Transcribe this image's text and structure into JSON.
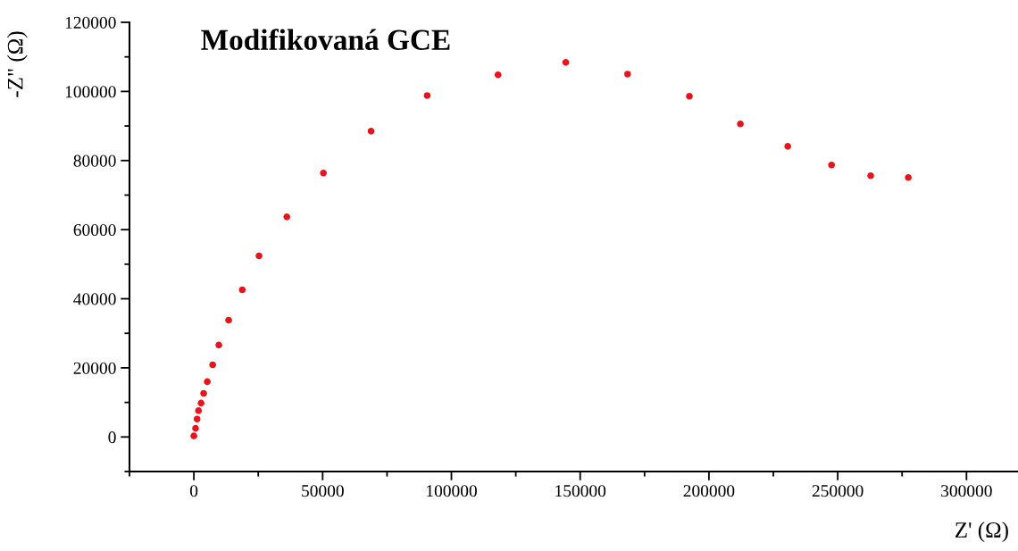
{
  "chart_data": {
    "type": "scatter",
    "title": "Modifikovaná GCE",
    "xlabel": "Z' (Ω)",
    "ylabel": "-Z\" (Ω)",
    "x": [
      0,
      650,
      1250,
      1800,
      2800,
      3800,
      5200,
      7300,
      9700,
      13500,
      18800,
      25300,
      36100,
      50300,
      68800,
      90600,
      118100,
      144400,
      168400,
      192400,
      212200,
      230600,
      247600,
      262800,
      277400
    ],
    "series": [
      {
        "color": "#e8141c",
        "values": [
          300,
          2500,
          5200,
          7600,
          9800,
          12600,
          16000,
          20900,
          26600,
          33800,
          42600,
          52400,
          63700,
          76400,
          88500,
          98800,
          104800,
          108400,
          105000,
          98600,
          90600,
          84100,
          78700,
          75600,
          75100
        ]
      }
    ],
    "xlim": [
      -25000,
      320000
    ],
    "xticks": [
      0,
      50000,
      100000,
      150000,
      200000,
      250000,
      300000
    ],
    "ylim": [
      -10000,
      120000
    ],
    "yticks": [
      0,
      20000,
      40000,
      60000,
      80000,
      100000,
      120000
    ],
    "grid": false,
    "marker": "circle"
  }
}
